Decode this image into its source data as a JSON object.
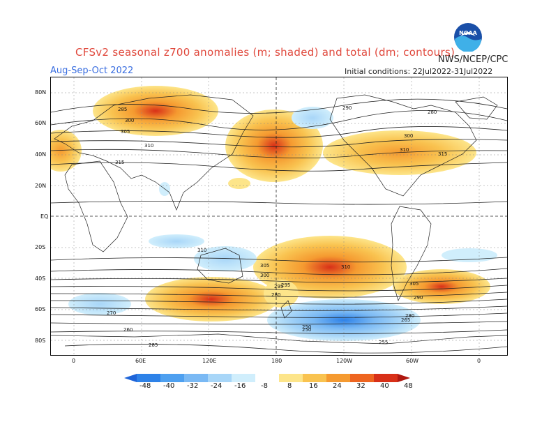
{
  "header": {
    "title": "CFSv2 seasonal z700 anomalies (m; shaded) and total (dm; contours)",
    "period": "Aug-Sep-Oct 2022",
    "initial_conditions": "Initial conditions: 22Jul2022-31Jul2022",
    "org": "NWS/NCEP/CPC",
    "logo_text": "NOAA"
  },
  "axes": {
    "lat_labels": [
      "80N",
      "60N",
      "40N",
      "20N",
      "EQ",
      "20S",
      "40S",
      "60S",
      "80S"
    ],
    "lon_labels": [
      "0",
      "60E",
      "120E",
      "180",
      "120W",
      "60W",
      "0"
    ]
  },
  "contour_labels": [
    "285",
    "300",
    "305",
    "310",
    "315",
    "310",
    "305",
    "295",
    "280",
    "250",
    "255",
    "260",
    "270",
    "285",
    "295",
    "300",
    "280",
    "290",
    "300",
    "310",
    "315",
    "310",
    "305",
    "290",
    "280",
    "250",
    "265"
  ],
  "colorbar": {
    "labels": [
      "-48",
      "-40",
      "-32",
      "-24",
      "-16",
      "-8",
      "8",
      "16",
      "24",
      "32",
      "40",
      "48"
    ],
    "colors": [
      "#1e64d8",
      "#2e82e8",
      "#4ea0f0",
      "#7ab9f4",
      "#a8d6f8",
      "#d0eefc",
      "#ffffff",
      "#fde58a",
      "#f9c350",
      "#f59a30",
      "#ee6520",
      "#d83018",
      "#b01810"
    ]
  }
}
